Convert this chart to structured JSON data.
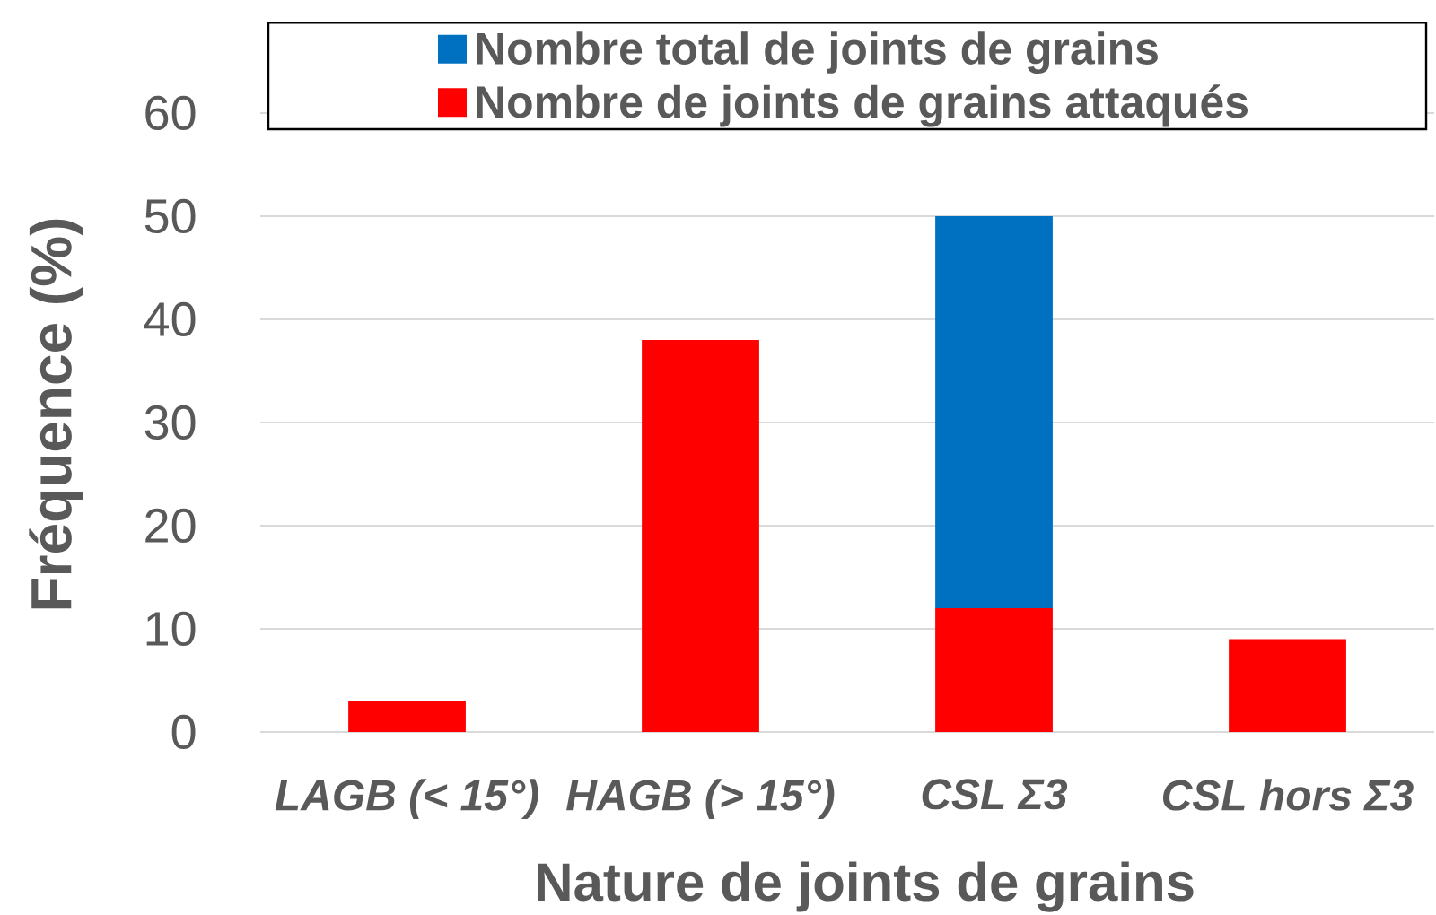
{
  "chart_data": {
    "type": "bar",
    "xlabel": "Nature de joints de grains",
    "ylabel": "Fréquence (%)",
    "categories": [
      "LAGB (< 15°)",
      "HAGB (> 15°)",
      "CSL Σ3",
      "CSL hors Σ3"
    ],
    "stacked": true,
    "series": [
      {
        "name": "Nombre de joints de grains attaqués",
        "color": "#ff0000",
        "values": [
          3,
          38,
          12,
          9
        ]
      },
      {
        "name": "Nombre total de joints de grains",
        "color": "#0070c0",
        "values": [
          null,
          null,
          38,
          null
        ]
      }
    ],
    "ylim": [
      0,
      60
    ],
    "yticks": [
      0,
      10,
      20,
      30,
      40,
      50,
      60
    ],
    "grid": "y",
    "legend": "top"
  }
}
